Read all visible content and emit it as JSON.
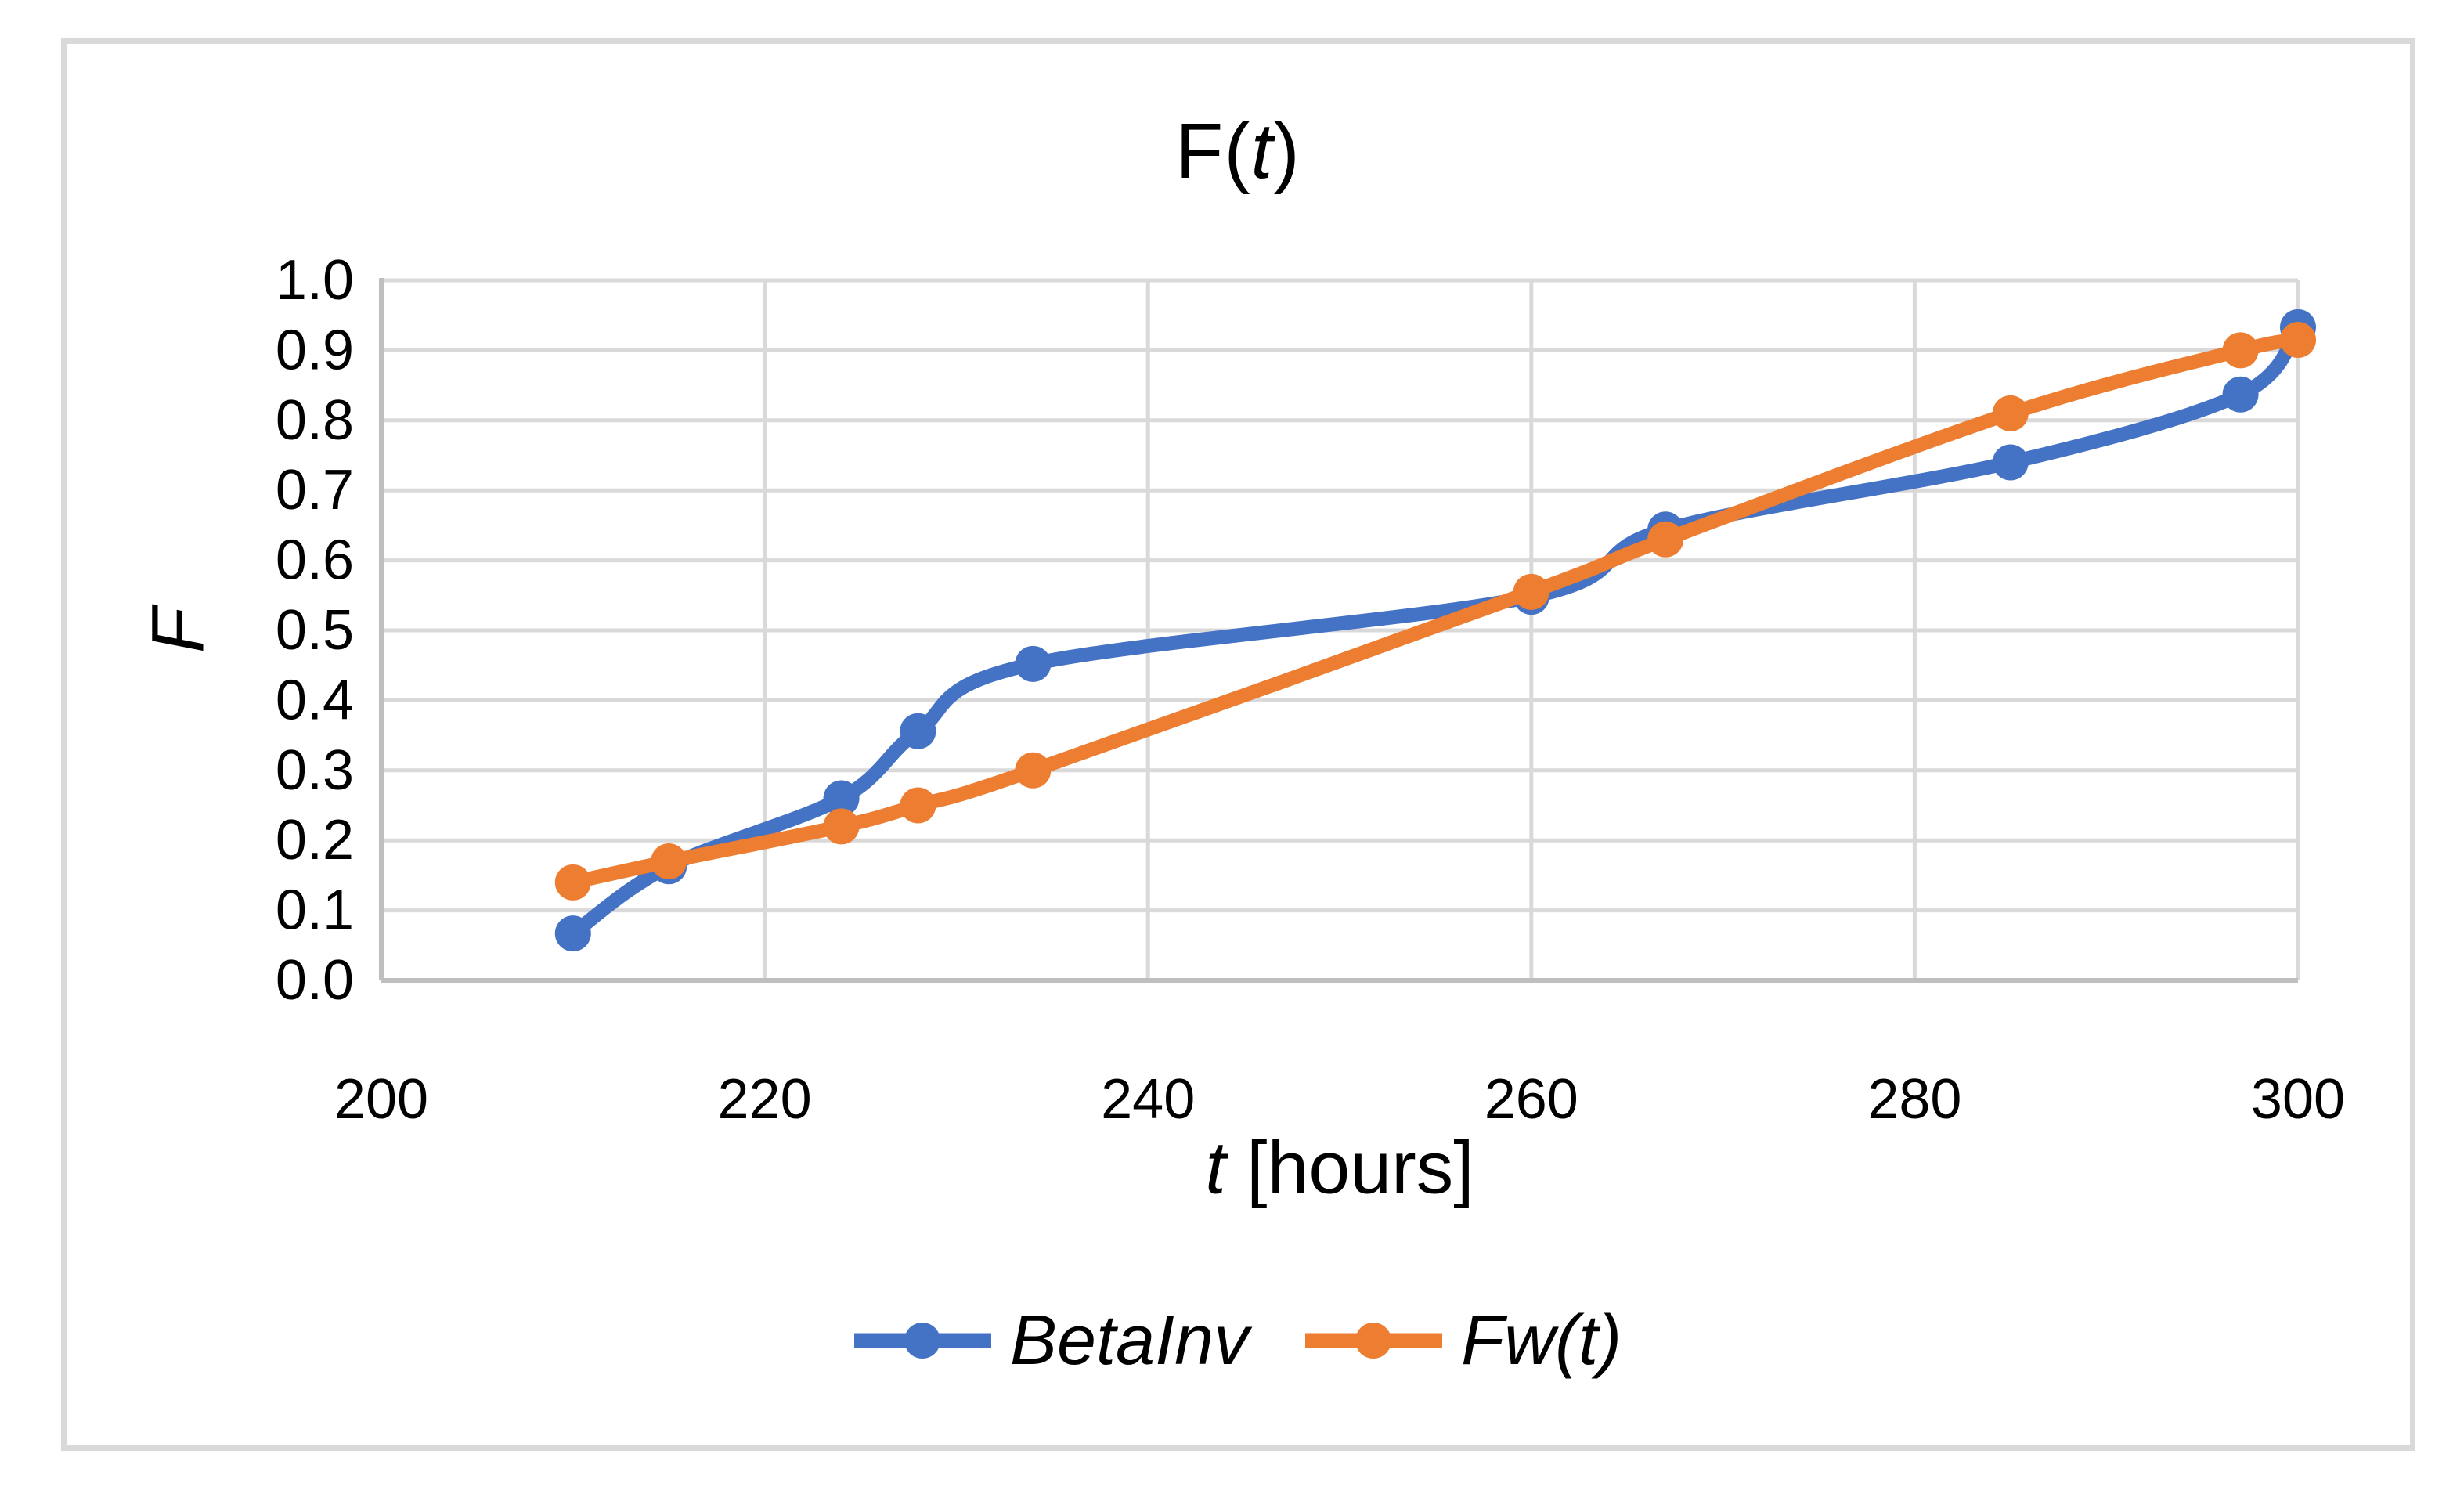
{
  "chart": {
    "title": {
      "prefix": "F(",
      "t": "t",
      "suffix": ")"
    },
    "colors": {
      "series_betainv": "#4472C4",
      "series_fw": "#ED7D31",
      "gridline": "#D9D9D9",
      "axis_line": "#BFBFBF",
      "border": "#D9D9D9",
      "text": "#000000"
    }
  },
  "axes": {
    "y": {
      "title": "F"
    },
    "x": {
      "title_t": "t",
      "title_rest": " [hours]"
    }
  },
  "legend": {
    "items": [
      {
        "label": "BetaInv",
        "color": "#4472C4"
      },
      {
        "label": "Fw(t)",
        "color": "#ED7D31"
      }
    ]
  },
  "chart_data": {
    "type": "line",
    "title": "F(t)",
    "xlabel": "t [hours]",
    "ylabel": "F",
    "xlim": [
      200,
      300
    ],
    "ylim": [
      0.0,
      1.0
    ],
    "xticks": [
      200,
      220,
      240,
      260,
      280,
      300
    ],
    "yticks": [
      0.0,
      0.1,
      0.2,
      0.3,
      0.4,
      0.5,
      0.6,
      0.7,
      0.8,
      0.9,
      1.0
    ],
    "grid": true,
    "legend_position": "bottom",
    "smoothed_lines": true,
    "marker": "circle",
    "x": [
      210,
      215,
      224,
      228,
      234,
      260,
      267,
      285,
      297,
      300
    ],
    "series": [
      {
        "name": "BetaInv",
        "color": "#4472C4",
        "values": [
          0.067,
          0.163,
          0.26,
          0.356,
          0.452,
          0.548,
          0.644,
          0.74,
          0.837,
          0.933
        ]
      },
      {
        "name": "Fw(t)",
        "color": "#ED7D31",
        "values": [
          0.14,
          0.17,
          0.22,
          0.25,
          0.3,
          0.555,
          0.63,
          0.81,
          0.9,
          0.915
        ]
      }
    ]
  }
}
